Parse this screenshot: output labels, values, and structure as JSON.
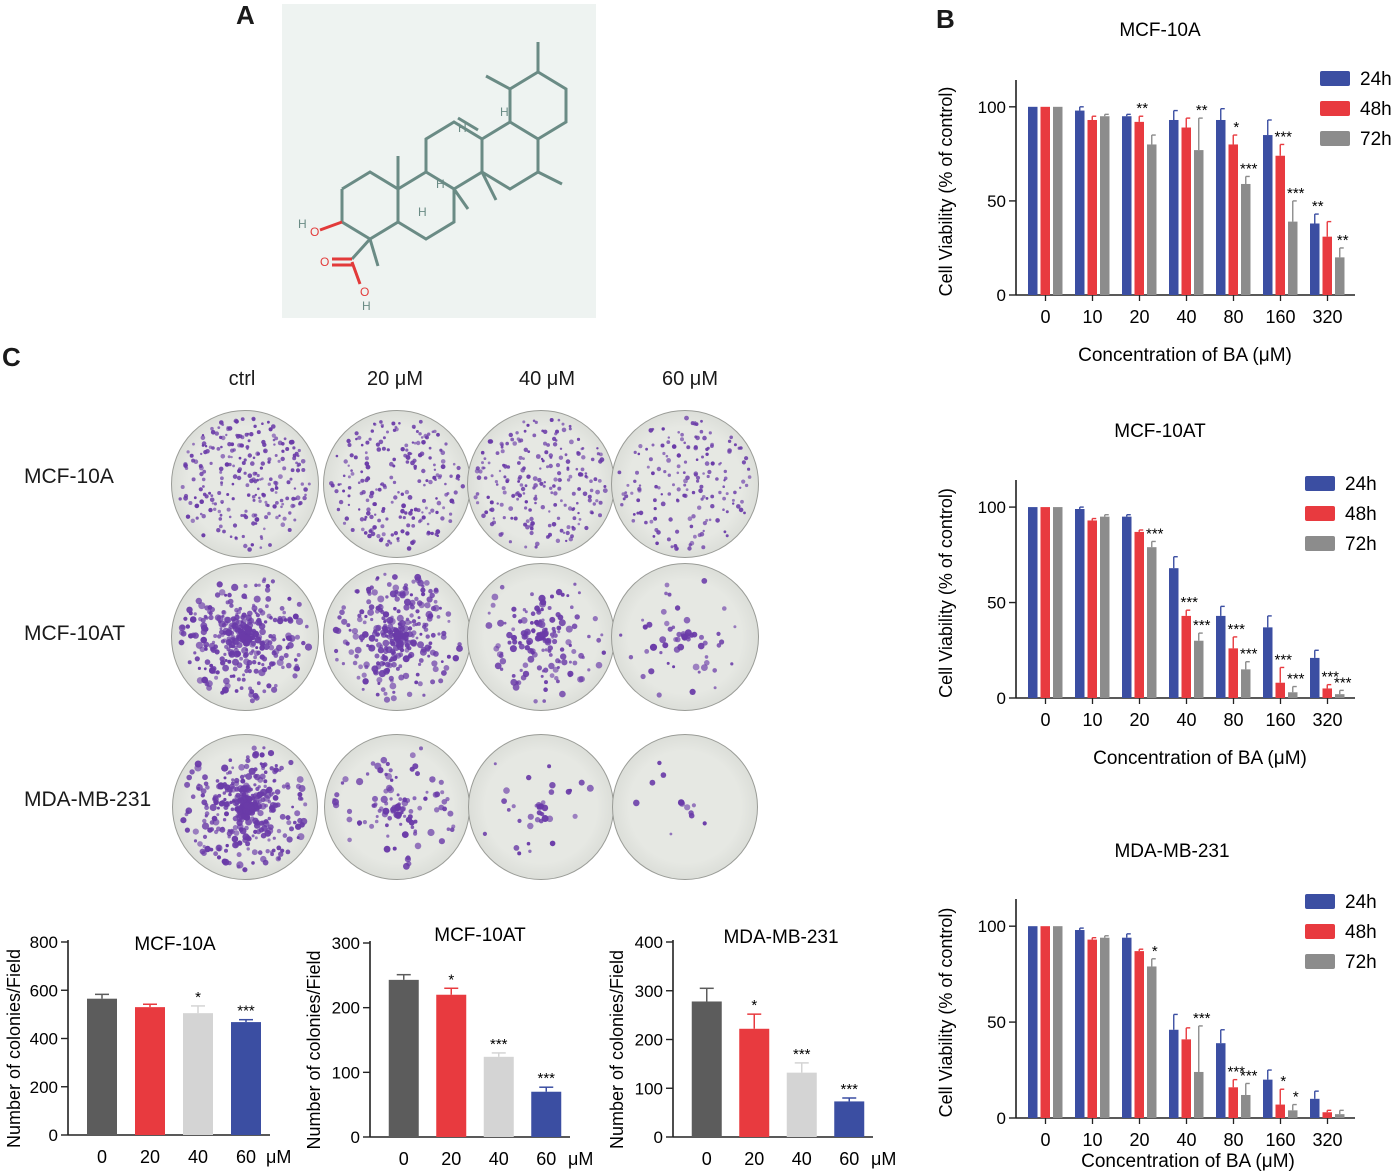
{
  "panels": {
    "a": "A",
    "b": "B",
    "c": "C"
  },
  "molecule": {
    "atoms": [
      "H",
      "O",
      "O",
      "O",
      "H",
      "H",
      "H",
      "H",
      "H"
    ]
  },
  "colors": {
    "h24": "#3b4ea2",
    "h48": "#e83a3f",
    "h72": "#8c8c8c",
    "ctrl": "#5c5c5c",
    "c20": "#e83a3f",
    "c40": "#d4d4d4",
    "c60": "#3b4ea2",
    "bond": "#6a8b85"
  },
  "plates": {
    "columns": [
      "ctrl",
      "20 μM",
      "40 μM",
      "60 μM"
    ],
    "rows": [
      "MCF-10A",
      "MCF-10AT",
      "MDA-MB-231"
    ],
    "density": [
      [
        260,
        220,
        220,
        170
      ],
      [
        380,
        330,
        170,
        60
      ],
      [
        420,
        110,
        40,
        12
      ]
    ]
  },
  "chart_data": [
    {
      "type": "bar",
      "title": "MCF-10A",
      "xlabel": "Concentration of BA (μM)",
      "ylabel": "Cell Viability (% of control)",
      "categories": [
        "0",
        "10",
        "20",
        "40",
        "80",
        "160",
        "320"
      ],
      "ylim": [
        0,
        110
      ],
      "yticks": [
        0,
        50,
        100
      ],
      "series": [
        {
          "name": "24h",
          "values": [
            100,
            98,
            95,
            93,
            93,
            85,
            38
          ],
          "errors": [
            0,
            2,
            1,
            5,
            6,
            8,
            5
          ]
        },
        {
          "name": "48h",
          "values": [
            100,
            93,
            92,
            89,
            80,
            74,
            31
          ],
          "errors": [
            0,
            2,
            3,
            5,
            5,
            6,
            8
          ]
        },
        {
          "name": "72h",
          "values": [
            100,
            95,
            80,
            77,
            59,
            39,
            20
          ],
          "errors": [
            0,
            1,
            5,
            17,
            4,
            11,
            5
          ]
        }
      ],
      "stars": [
        {
          "cat": 2,
          "series": 1,
          "text": "**"
        },
        {
          "cat": 3,
          "series": 2,
          "text": "**"
        },
        {
          "cat": 4,
          "series": 1,
          "text": "*"
        },
        {
          "cat": 4,
          "series": 2,
          "text": "***"
        },
        {
          "cat": 5,
          "series": 1,
          "text": "***"
        },
        {
          "cat": 5,
          "series": 2,
          "text": "***"
        },
        {
          "cat": 6,
          "series": 0,
          "text": "**"
        },
        {
          "cat": 6,
          "series": 2,
          "text": "**"
        }
      ]
    },
    {
      "type": "bar",
      "title": "MCF-10AT",
      "xlabel": "Concentration of BA (μM)",
      "ylabel": "Cell Viability (% of control)",
      "categories": [
        "0",
        "10",
        "20",
        "40",
        "80",
        "160",
        "320"
      ],
      "ylim": [
        0,
        110
      ],
      "yticks": [
        0,
        50,
        100
      ],
      "series": [
        {
          "name": "24h",
          "values": [
            100,
            99,
            95,
            68,
            43,
            37,
            21
          ],
          "errors": [
            0,
            1,
            1,
            6,
            5,
            6,
            4
          ]
        },
        {
          "name": "48h",
          "values": [
            100,
            93,
            87,
            43,
            26,
            8,
            5
          ],
          "errors": [
            0,
            1,
            1,
            3,
            6,
            8,
            2
          ]
        },
        {
          "name": "72h",
          "values": [
            100,
            95,
            79,
            30,
            15,
            3,
            2
          ],
          "errors": [
            0,
            1,
            3,
            4,
            4,
            3,
            2
          ]
        }
      ],
      "stars": [
        {
          "cat": 2,
          "series": 2,
          "text": "***"
        },
        {
          "cat": 3,
          "series": 1,
          "text": "***"
        },
        {
          "cat": 3,
          "series": 2,
          "text": "***"
        },
        {
          "cat": 4,
          "series": 1,
          "text": "***"
        },
        {
          "cat": 4,
          "series": 2,
          "text": "***"
        },
        {
          "cat": 5,
          "series": 1,
          "text": "***"
        },
        {
          "cat": 5,
          "series": 2,
          "text": "***"
        },
        {
          "cat": 6,
          "series": 1,
          "text": "***"
        },
        {
          "cat": 6,
          "series": 2,
          "text": "***"
        }
      ]
    },
    {
      "type": "bar",
      "title": "MDA-MB-231",
      "xlabel": "Concentration of BA (μM)",
      "ylabel": "Cell Viability (% of control)",
      "categories": [
        "0",
        "10",
        "20",
        "40",
        "80",
        "160",
        "320"
      ],
      "ylim": [
        0,
        110
      ],
      "yticks": [
        0,
        50,
        100
      ],
      "series": [
        {
          "name": "24h",
          "values": [
            100,
            98,
            94,
            46,
            39,
            20,
            10
          ],
          "errors": [
            0,
            1,
            2,
            8,
            7,
            5,
            4
          ]
        },
        {
          "name": "48h",
          "values": [
            100,
            93,
            87,
            41,
            16,
            7,
            3
          ],
          "errors": [
            0,
            1,
            1,
            6,
            4,
            8,
            1
          ]
        },
        {
          "name": "72h",
          "values": [
            100,
            94,
            79,
            24,
            12,
            4,
            2
          ],
          "errors": [
            0,
            1,
            4,
            24,
            6,
            3,
            2
          ]
        }
      ],
      "stars": [
        {
          "cat": 2,
          "series": 2,
          "text": "*"
        },
        {
          "cat": 3,
          "series": 2,
          "text": "***"
        },
        {
          "cat": 4,
          "series": 1,
          "text": "***"
        },
        {
          "cat": 4,
          "series": 2,
          "text": "***"
        },
        {
          "cat": 5,
          "series": 1,
          "text": "*"
        },
        {
          "cat": 5,
          "series": 2,
          "text": "*"
        }
      ]
    },
    {
      "type": "bar",
      "title": "MCF-10A",
      "ylabel": "Number of colonies/Field",
      "xunit": "μM",
      "categories": [
        "0",
        "20",
        "40",
        "60"
      ],
      "ylim": [
        0,
        800
      ],
      "yticks": [
        0,
        200,
        400,
        600,
        800
      ],
      "values": [
        565,
        530,
        505,
        468
      ],
      "errors": [
        18,
        12,
        30,
        10
      ],
      "stars": [
        "",
        "",
        "*",
        "***"
      ]
    },
    {
      "type": "bar",
      "title": "MCF-10AT",
      "ylabel": "Number of colonies/Field",
      "xunit": "μM",
      "categories": [
        "0",
        "20",
        "40",
        "60"
      ],
      "ylim": [
        0,
        300
      ],
      "yticks": [
        0,
        100,
        200,
        300
      ],
      "values": [
        243,
        220,
        124,
        70
      ],
      "errors": [
        8,
        10,
        6,
        7
      ],
      "stars": [
        "",
        "*",
        "***",
        "***"
      ]
    },
    {
      "type": "bar",
      "title": "MDA-MB-231",
      "ylabel": "Number of colonies/Field",
      "xunit": "μM",
      "categories": [
        "0",
        "20",
        "40",
        "60"
      ],
      "ylim": [
        0,
        400
      ],
      "yticks": [
        0,
        100,
        200,
        300,
        400
      ],
      "values": [
        278,
        222,
        132,
        73
      ],
      "errors": [
        27,
        30,
        20,
        7
      ],
      "stars": [
        "",
        "*",
        "***",
        "***"
      ]
    }
  ]
}
